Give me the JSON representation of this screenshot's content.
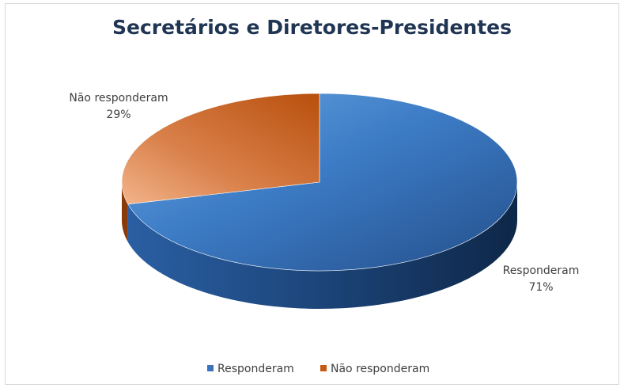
{
  "chart_data": {
    "type": "pie",
    "title": "Secretários e Diretores-Presidentes",
    "categories": [
      "Responderam",
      "Não responderam"
    ],
    "values": [
      71,
      29
    ],
    "labels": [
      "71%",
      "29%"
    ],
    "colors": [
      "#2e5f9e",
      "#c55a11"
    ],
    "legend": "bottom",
    "style": "3d"
  }
}
